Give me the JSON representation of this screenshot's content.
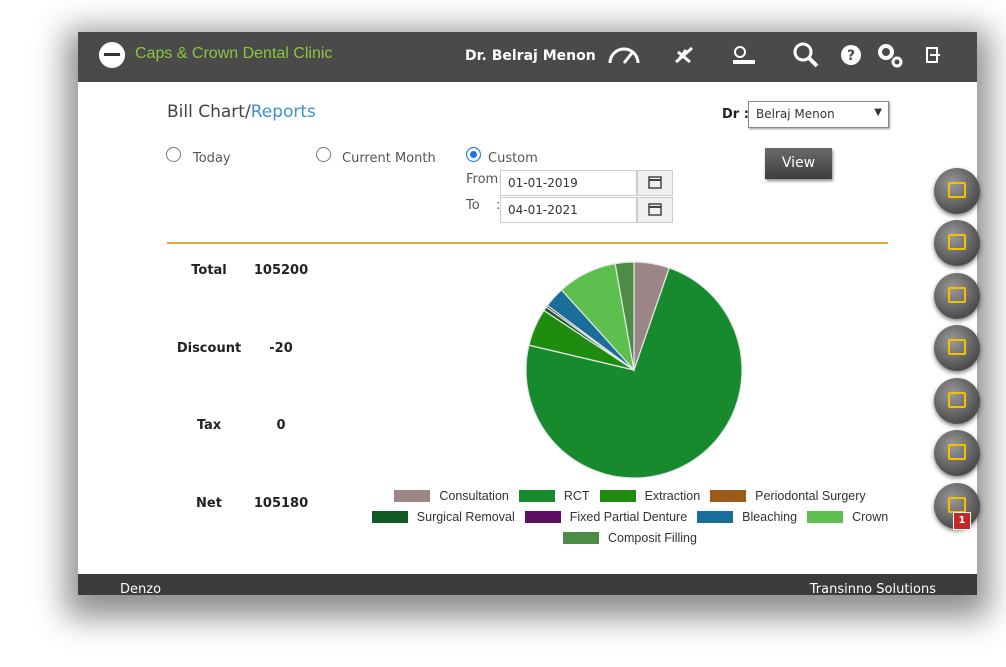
{
  "header": {
    "clinic_name": "Caps & Crown Dental Clinic",
    "doctor": "Dr. Belraj Menon"
  },
  "page": {
    "title": "Bill Chart/",
    "title_link": "Reports"
  },
  "filter": {
    "dr_label": "Dr :",
    "dr_value": "Belraj Menon",
    "options": [
      "Today",
      "Current Month",
      "Custom"
    ],
    "from_label": "From:",
    "from_value": "01-01-2019",
    "to_label": "To",
    "to_colon": ":",
    "to_value": "04-01-2021",
    "button": "View"
  },
  "summary": [
    {
      "label": "Total",
      "value": 105200
    },
    {
      "label": "Discount",
      "value": -20
    },
    {
      "label": "Tax",
      "value": 0
    },
    {
      "label": "Net",
      "value": 105180
    }
  ],
  "chart_data": {
    "type": "pie",
    "categories": [
      "Consultation",
      "RCT",
      "Extraction",
      "Periodontal Surgery",
      "Surgical Removal",
      "Fixed Partial Denture",
      "Bleaching",
      "Crown",
      "Composit Filling"
    ],
    "values": [
      5.3,
      73.4,
      5.6,
      0,
      0.6,
      0.3,
      3.1,
      8.9,
      2.8
    ],
    "colors": [
      "#9c8587",
      "#188a2e",
      "#1f8c10",
      "#9a5a1a",
      "#0f5a25",
      "#5a1060",
      "#1a6e9a",
      "#5cbf4e",
      "#4d8c45"
    ]
  },
  "sidebar": {
    "badge": 1
  },
  "footer": {
    "left": "Denzo",
    "right": "Transinno Solutions"
  }
}
